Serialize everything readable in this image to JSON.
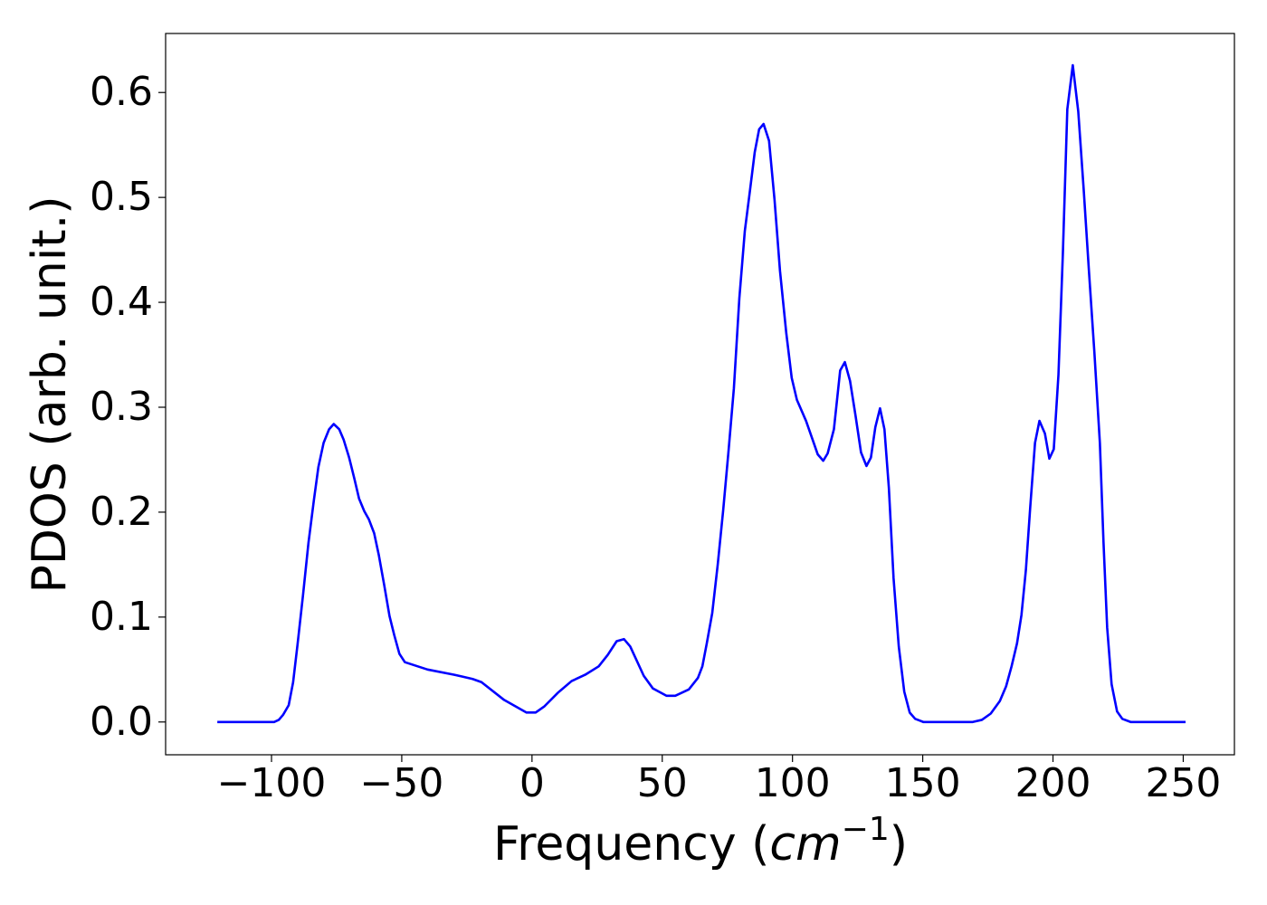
{
  "chart_data": {
    "type": "line",
    "xlabel": "Frequency (",
    "xlabel_math": "cm",
    "xlabel_sup": "−1",
    "xlabel_end": ")",
    "ylabel": "PDOS (arb. unit.)",
    "xlim": [
      -140.65,
      269.65
    ],
    "ylim": [
      -0.03125,
      0.65625
    ],
    "xticks": [
      {
        "value": -100,
        "label": "−100"
      },
      {
        "value": -50,
        "label": "−50"
      },
      0,
      50,
      100,
      150,
      200,
      250
    ],
    "yticks": [
      {
        "value": 0,
        "label": "0.0"
      },
      0.1,
      0.2,
      0.3,
      0.4,
      0.5,
      0.6
    ],
    "grid": false,
    "series": [
      {
        "color": "#0000ff",
        "x": [
          -120.8,
          -99,
          -97.2,
          -95.5,
          -93.4,
          -91.7,
          -90,
          -87.9,
          -85.8,
          -83.7,
          -82,
          -80,
          -77.9,
          -76.1,
          -74,
          -72.3,
          -70.2,
          -68.2,
          -66.4,
          -64.4,
          -62.6,
          -60.6,
          -58.8,
          -56.7,
          -54.7,
          -52.9,
          -50.9,
          -48.8,
          -40.1,
          -29.8,
          -22.8,
          -19.4,
          -10.7,
          -2.1,
          1.4,
          4.8,
          10,
          15.2,
          20.4,
          25.6,
          29.1,
          32.5,
          35.3,
          37.7,
          42.9,
          46.4,
          51.6,
          55,
          60.2,
          63.7,
          65.4,
          67.1,
          69.2,
          71.3,
          73.4,
          75.4,
          77.5,
          79.6,
          81.7,
          83.7,
          85.5,
          87.2,
          88.9,
          91,
          93.1,
          95.2,
          97.6,
          99.7,
          101.7,
          105.2,
          107.6,
          109.7,
          111.8,
          113.5,
          115.9,
          118.3,
          120.1,
          122.1,
          124.2,
          126.3,
          128.4,
          130.1,
          131.8,
          133.6,
          135.3,
          137,
          138.8,
          140.8,
          142.9,
          145,
          147.1,
          150.2,
          169.2,
          172.7,
          176.1,
          179.6,
          182,
          184.1,
          186.2,
          187.9,
          189.6,
          191.3,
          193.1,
          194.8,
          196.9,
          198.6,
          200.3,
          202.1,
          203.8,
          205.5,
          207.6,
          209.7,
          211.8,
          213.8,
          215.9,
          218,
          219.4,
          220.8,
          222.5,
          224.6,
          226.6,
          229.8,
          250.9
        ],
        "values": [
          0,
          0,
          0.002,
          0.007,
          0.016,
          0.038,
          0.074,
          0.121,
          0.171,
          0.212,
          0.243,
          0.266,
          0.279,
          0.284,
          0.279,
          0.269,
          0.252,
          0.232,
          0.213,
          0.201,
          0.193,
          0.18,
          0.159,
          0.13,
          0.101,
          0.083,
          0.065,
          0.057,
          0.05,
          0.045,
          0.041,
          0.038,
          0.021,
          0.009,
          0.009,
          0.015,
          0.028,
          0.039,
          0.045,
          0.053,
          0.064,
          0.077,
          0.079,
          0.072,
          0.044,
          0.032,
          0.025,
          0.025,
          0.031,
          0.042,
          0.053,
          0.075,
          0.104,
          0.15,
          0.202,
          0.257,
          0.318,
          0.404,
          0.468,
          0.507,
          0.543,
          0.565,
          0.57,
          0.554,
          0.498,
          0.43,
          0.371,
          0.328,
          0.307,
          0.287,
          0.27,
          0.255,
          0.249,
          0.256,
          0.279,
          0.335,
          0.343,
          0.325,
          0.292,
          0.257,
          0.244,
          0.252,
          0.281,
          0.299,
          0.279,
          0.223,
          0.137,
          0.072,
          0.029,
          0.009,
          0.003,
          0,
          0,
          0.002,
          0.008,
          0.02,
          0.034,
          0.053,
          0.075,
          0.102,
          0.145,
          0.206,
          0.266,
          0.287,
          0.275,
          0.251,
          0.26,
          0.331,
          0.447,
          0.584,
          0.626,
          0.582,
          0.507,
          0.43,
          0.352,
          0.266,
          0.171,
          0.09,
          0.036,
          0.01,
          0.003,
          0,
          0
        ]
      }
    ]
  }
}
